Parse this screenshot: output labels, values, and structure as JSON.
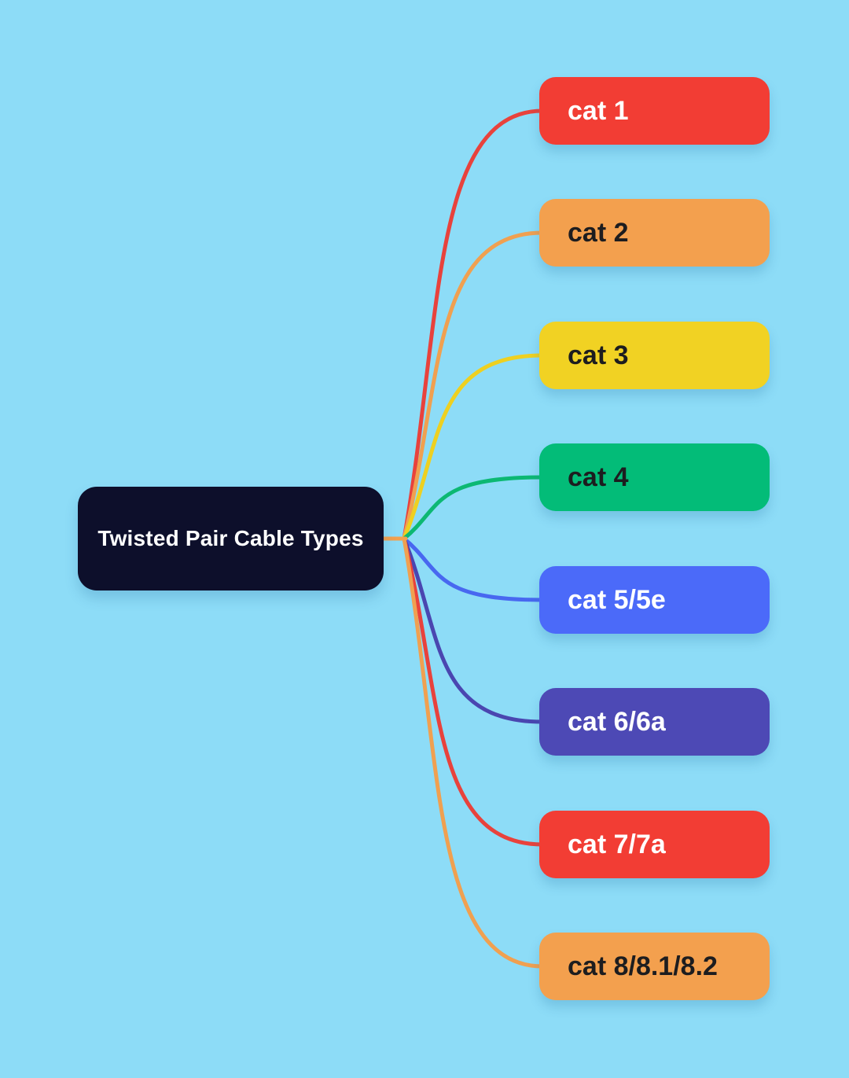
{
  "canvas": {
    "background_color": "#8ddcf7"
  },
  "root": {
    "label": "Twisted Pair Cable Types",
    "bg_color": "#0d0f2b",
    "text_color": "#ffffff"
  },
  "connector": {
    "stub_color": "#f3a04e",
    "line_width": 5
  },
  "branches": [
    {
      "label": "cat 1",
      "bg_color": "#f23d34",
      "text_color": "#ffffff",
      "edge_color": "#e8423c"
    },
    {
      "label": "cat 2",
      "bg_color": "#f3a04e",
      "text_color": "#1d1d1f",
      "edge_color": "#f0a050"
    },
    {
      "label": "cat 3",
      "bg_color": "#f1d223",
      "text_color": "#1d1d1f",
      "edge_color": "#eed020"
    },
    {
      "label": "cat 4",
      "bg_color": "#03bc78",
      "text_color": "#1d1d1f",
      "edge_color": "#0cb873"
    },
    {
      "label": "cat 5/5e",
      "bg_color": "#4b6af9",
      "text_color": "#ffffff",
      "edge_color": "#4868f0"
    },
    {
      "label": "cat 6/6a",
      "bg_color": "#4d49b5",
      "text_color": "#ffffff",
      "edge_color": "#4a46b0"
    },
    {
      "label": "cat 7/7a",
      "bg_color": "#f23d34",
      "text_color": "#ffffff",
      "edge_color": "#e8423c"
    },
    {
      "label": "cat 8/8.1/8.2",
      "bg_color": "#f3a04e",
      "text_color": "#1d1d1f",
      "edge_color": "#f0a050"
    }
  ]
}
